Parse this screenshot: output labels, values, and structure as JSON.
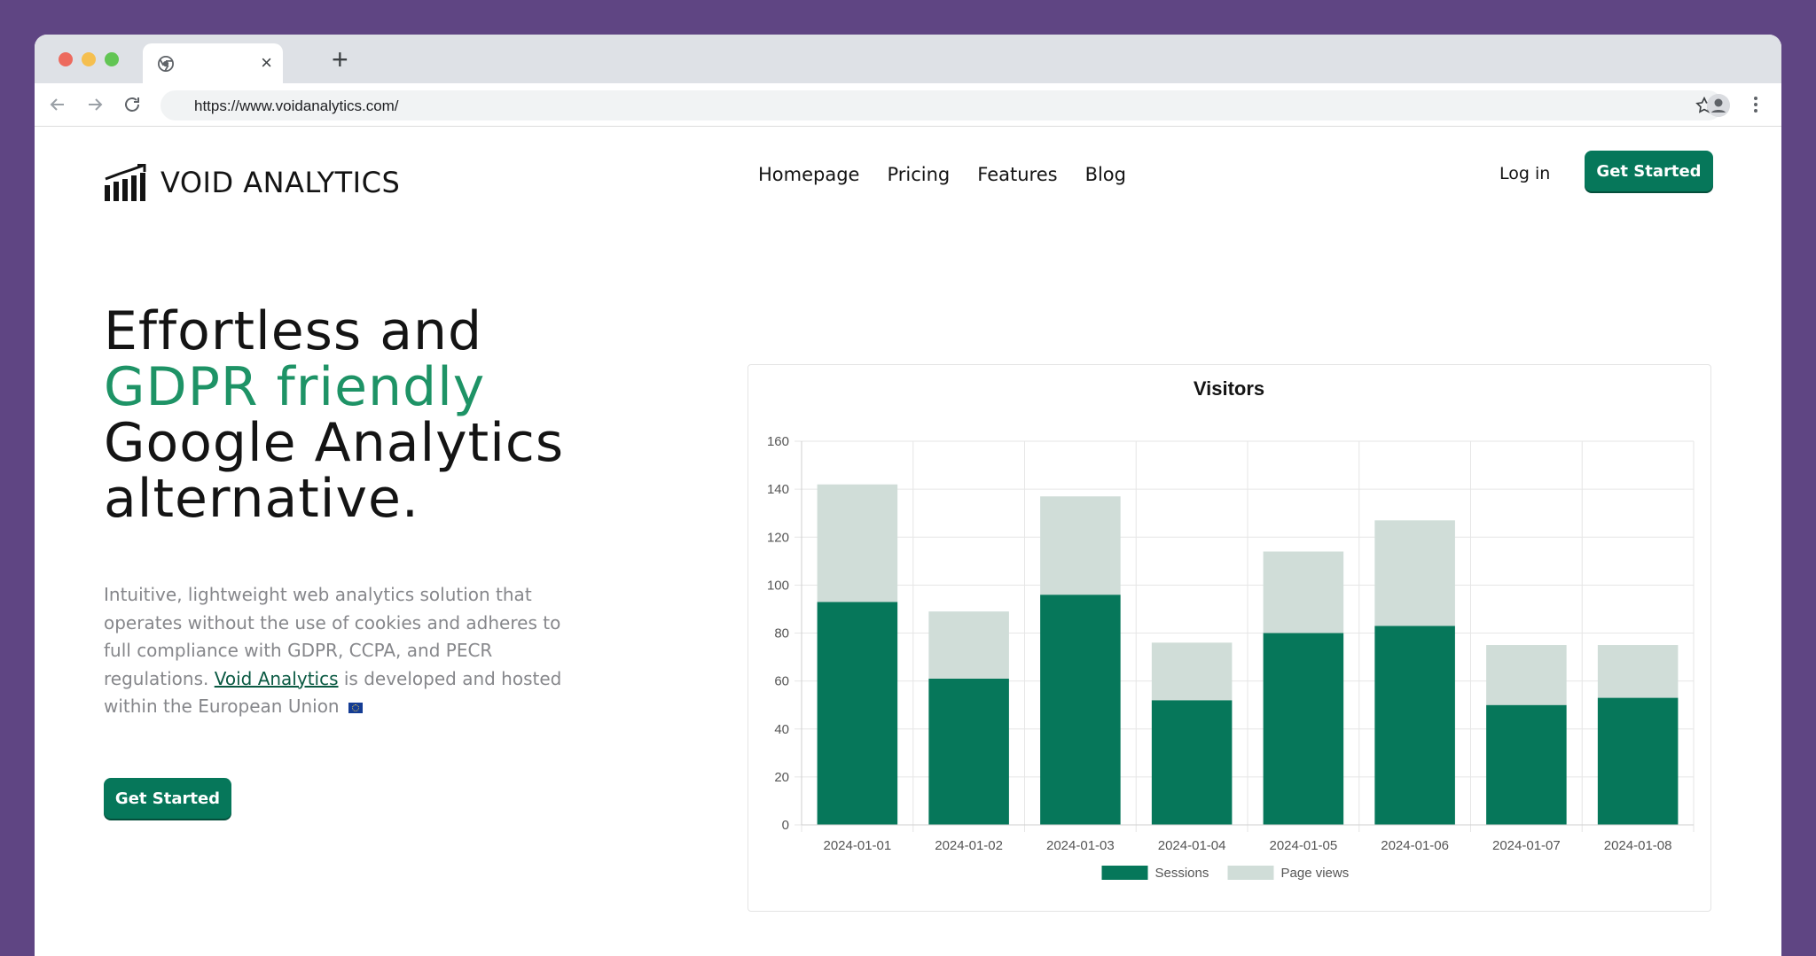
{
  "browser": {
    "tab_close": "×",
    "new_tab": "+",
    "url": "https://www.voidanalytics.com/"
  },
  "header": {
    "brand": "VOID ANALYTICS",
    "nav": [
      {
        "label": "Homepage"
      },
      {
        "label": "Pricing"
      },
      {
        "label": "Features"
      },
      {
        "label": "Blog"
      }
    ],
    "login_label": "Log in",
    "cta_label": "Get Started"
  },
  "hero": {
    "headline_line1": "Effortless and",
    "headline_line2": "GDPR friendly",
    "headline_line3": "Google Analytics",
    "headline_line4": "alternative.",
    "description_part1": "Intuitive, lightweight web analytics solution that operates without the use of cookies and adheres to full compliance with GDPR, CCPA, and PECR regulations.",
    "description_link": "Void Analytics",
    "description_part2": "is developed and hosted within the European Union",
    "cta_label": "Get Started"
  },
  "colors": {
    "brand": "#06775a",
    "accent_text": "#1e9366",
    "sessions": "#06775a",
    "page_views": "#d0ddd8"
  },
  "chart_data": {
    "type": "bar",
    "stacked": true,
    "title": "Visitors",
    "categories": [
      "2024-01-01",
      "2024-01-02",
      "2024-01-03",
      "2024-01-04",
      "2024-01-05",
      "2024-01-06",
      "2024-01-07",
      "2024-01-08"
    ],
    "series": [
      {
        "name": "Sessions",
        "values": [
          93,
          61,
          96,
          52,
          80,
          83,
          50,
          53
        ]
      },
      {
        "name": "Page views",
        "values": [
          49,
          28,
          41,
          24,
          34,
          44,
          25,
          22
        ]
      }
    ],
    "ylim": [
      0,
      160
    ],
    "yticks": [
      0,
      20,
      40,
      60,
      80,
      100,
      120,
      140,
      160
    ],
    "grid": true,
    "legend": "bottom"
  }
}
